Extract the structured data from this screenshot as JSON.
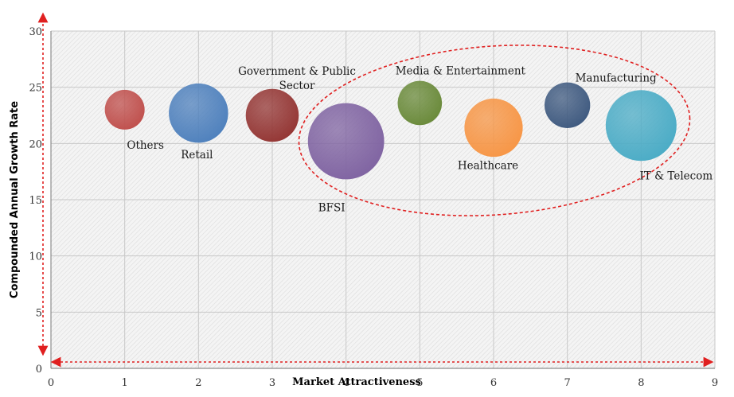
{
  "chart_data": {
    "type": "bubble",
    "xlabel": "Market Attractiveness",
    "ylabel": "Compounded Annual Growth Rate",
    "xlim": [
      0,
      9
    ],
    "ylim": [
      0,
      30
    ],
    "xticks": [
      0,
      1,
      2,
      3,
      4,
      5,
      6,
      7,
      8,
      9
    ],
    "yticks": [
      0,
      5,
      10,
      15,
      20,
      25,
      30
    ],
    "x_tick_labels": [
      "0",
      "1",
      "2",
      "3",
      "4",
      "5",
      "6",
      "7",
      "8",
      "9"
    ],
    "y_tick_labels": [
      "0",
      "5",
      "10",
      "15",
      "20",
      "25",
      "30"
    ],
    "grid": true,
    "series": [
      {
        "name": "Others",
        "x": 1,
        "y": 23.0,
        "size": 1.0,
        "color": "#c0504d"
      },
      {
        "name": "Retail",
        "x": 2,
        "y": 22.7,
        "size": 2.6,
        "color": "#4f81bd"
      },
      {
        "name": "Government & Public Sector",
        "x": 3,
        "y": 22.5,
        "size": 2.0,
        "color": "#943634"
      },
      {
        "name": "BFSI",
        "x": 4,
        "y": 20.2,
        "size": 4.6,
        "color": "#8064a2"
      },
      {
        "name": "Media & Entertainment",
        "x": 5,
        "y": 23.6,
        "size": 1.3,
        "color": "#6a8a3a"
      },
      {
        "name": "Healthcare",
        "x": 6,
        "y": 21.4,
        "size": 2.5,
        "color": "#f79646"
      },
      {
        "name": "Manufacturing",
        "x": 7,
        "y": 23.4,
        "size": 1.4,
        "color": "#3f5a80"
      },
      {
        "name": "IT & Telecom",
        "x": 8,
        "y": 21.6,
        "size": 3.9,
        "color": "#4bacc6"
      }
    ],
    "annotations": {
      "highlight_ellipse_color": "#e02020",
      "arrow_color": "#e02020"
    }
  }
}
